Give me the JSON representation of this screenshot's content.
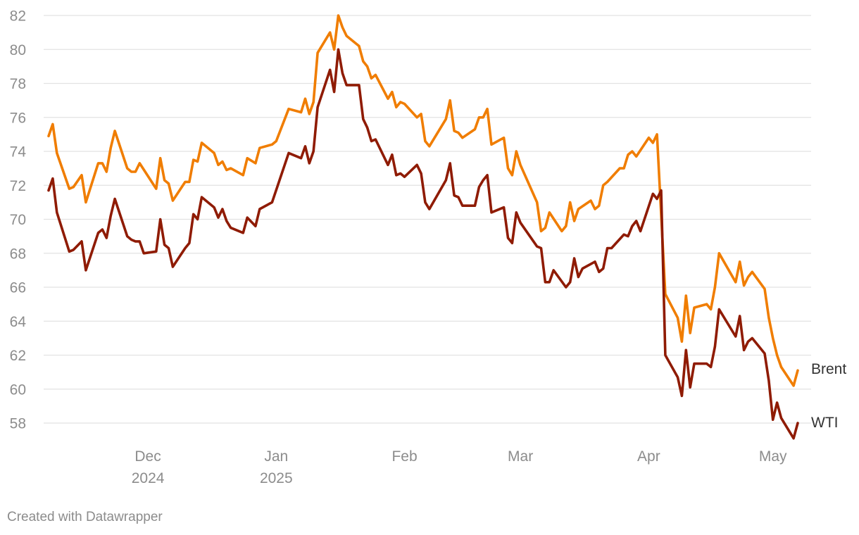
{
  "credit": "Created with Datawrapper",
  "chart_data": {
    "type": "line",
    "title": "",
    "xlabel": "",
    "ylabel": "",
    "ylim": [
      57,
      82
    ],
    "yticks": [
      58,
      60,
      62,
      64,
      66,
      68,
      70,
      72,
      74,
      76,
      78,
      80,
      82
    ],
    "xlim": [
      "2024-11-07",
      "2025-05-07"
    ],
    "xticks": [
      {
        "date": "2024-12-01",
        "label": "Dec",
        "sublabel": "2024"
      },
      {
        "date": "2025-01-01",
        "label": "Jan",
        "sublabel": "2025"
      },
      {
        "date": "2025-02-01",
        "label": "Feb",
        "sublabel": ""
      },
      {
        "date": "2025-03-01",
        "label": "Mar",
        "sublabel": ""
      },
      {
        "date": "2025-04-01",
        "label": "Apr",
        "sublabel": ""
      },
      {
        "date": "2025-05-01",
        "label": "May",
        "sublabel": ""
      }
    ],
    "grid": true,
    "legend": "direct labels at line ends",
    "series": [
      {
        "name": "Brent",
        "color": "#f07d00",
        "points": [
          [
            "2024-11-07",
            74.9
          ],
          [
            "2024-11-08",
            75.6
          ],
          [
            "2024-11-09",
            73.9
          ],
          [
            "2024-11-12",
            71.8
          ],
          [
            "2024-11-13",
            71.9
          ],
          [
            "2024-11-15",
            72.6
          ],
          [
            "2024-11-16",
            71.0
          ],
          [
            "2024-11-19",
            73.3
          ],
          [
            "2024-11-20",
            73.3
          ],
          [
            "2024-11-21",
            72.8
          ],
          [
            "2024-11-22",
            74.2
          ],
          [
            "2024-11-23",
            75.2
          ],
          [
            "2024-11-26",
            73.0
          ],
          [
            "2024-11-27",
            72.8
          ],
          [
            "2024-11-28",
            72.8
          ],
          [
            "2024-11-29",
            73.3
          ],
          [
            "2024-12-03",
            71.8
          ],
          [
            "2024-12-04",
            73.6
          ],
          [
            "2024-12-05",
            72.3
          ],
          [
            "2024-12-06",
            72.1
          ],
          [
            "2024-12-07",
            71.1
          ],
          [
            "2024-12-10",
            72.2
          ],
          [
            "2024-12-11",
            72.2
          ],
          [
            "2024-12-12",
            73.5
          ],
          [
            "2024-12-13",
            73.4
          ],
          [
            "2024-12-14",
            74.5
          ],
          [
            "2024-12-17",
            73.9
          ],
          [
            "2024-12-18",
            73.2
          ],
          [
            "2024-12-19",
            73.4
          ],
          [
            "2024-12-20",
            72.9
          ],
          [
            "2024-12-21",
            73.0
          ],
          [
            "2024-12-24",
            72.6
          ],
          [
            "2024-12-25",
            73.6
          ],
          [
            "2024-12-27",
            73.3
          ],
          [
            "2024-12-28",
            74.2
          ],
          [
            "2024-12-31",
            74.4
          ],
          [
            "2025-01-01",
            74.6
          ],
          [
            "2025-01-04",
            76.5
          ],
          [
            "2025-01-07",
            76.3
          ],
          [
            "2025-01-08",
            77.1
          ],
          [
            "2025-01-09",
            76.2
          ],
          [
            "2025-01-10",
            76.9
          ],
          [
            "2025-01-11",
            79.8
          ],
          [
            "2025-01-14",
            81.0
          ],
          [
            "2025-01-15",
            80.0
          ],
          [
            "2025-01-16",
            82.0
          ],
          [
            "2025-01-17",
            81.3
          ],
          [
            "2025-01-18",
            80.8
          ],
          [
            "2025-01-21",
            80.2
          ],
          [
            "2025-01-22",
            79.3
          ],
          [
            "2025-01-23",
            79.0
          ],
          [
            "2025-01-24",
            78.3
          ],
          [
            "2025-01-25",
            78.5
          ],
          [
            "2025-01-28",
            77.1
          ],
          [
            "2025-01-29",
            77.5
          ],
          [
            "2025-01-30",
            76.6
          ],
          [
            "2025-01-31",
            76.9
          ],
          [
            "2025-02-01",
            76.8
          ],
          [
            "2025-02-04",
            76.0
          ],
          [
            "2025-02-05",
            76.2
          ],
          [
            "2025-02-06",
            74.6
          ],
          [
            "2025-02-07",
            74.3
          ],
          [
            "2025-02-11",
            75.9
          ],
          [
            "2025-02-12",
            77.0
          ],
          [
            "2025-02-13",
            75.2
          ],
          [
            "2025-02-14",
            75.1
          ],
          [
            "2025-02-15",
            74.8
          ],
          [
            "2025-02-18",
            75.3
          ],
          [
            "2025-02-19",
            76.0
          ],
          [
            "2025-02-20",
            76.0
          ],
          [
            "2025-02-21",
            76.5
          ],
          [
            "2025-02-22",
            74.4
          ],
          [
            "2025-02-25",
            74.8
          ],
          [
            "2025-02-26",
            73.0
          ],
          [
            "2025-02-27",
            72.6
          ],
          [
            "2025-02-28",
            74.0
          ],
          [
            "2025-03-01",
            73.2
          ],
          [
            "2025-03-05",
            71.0
          ],
          [
            "2025-03-06",
            69.3
          ],
          [
            "2025-03-07",
            69.5
          ],
          [
            "2025-03-08",
            70.4
          ],
          [
            "2025-03-11",
            69.3
          ],
          [
            "2025-03-12",
            69.6
          ],
          [
            "2025-03-13",
            71.0
          ],
          [
            "2025-03-14",
            69.9
          ],
          [
            "2025-03-15",
            70.6
          ],
          [
            "2025-03-18",
            71.1
          ],
          [
            "2025-03-19",
            70.6
          ],
          [
            "2025-03-20",
            70.8
          ],
          [
            "2025-03-21",
            72.0
          ],
          [
            "2025-03-22",
            72.2
          ],
          [
            "2025-03-25",
            73.0
          ],
          [
            "2025-03-26",
            73.0
          ],
          [
            "2025-03-27",
            73.8
          ],
          [
            "2025-03-28",
            74.0
          ],
          [
            "2025-03-29",
            73.7
          ],
          [
            "2025-04-01",
            74.8
          ],
          [
            "2025-04-02",
            74.5
          ],
          [
            "2025-04-03",
            75.0
          ],
          [
            "2025-04-05",
            65.6
          ],
          [
            "2025-04-08",
            64.2
          ],
          [
            "2025-04-09",
            62.8
          ],
          [
            "2025-04-10",
            65.5
          ],
          [
            "2025-04-11",
            63.3
          ],
          [
            "2025-04-12",
            64.8
          ],
          [
            "2025-04-15",
            65.0
          ],
          [
            "2025-04-16",
            64.7
          ],
          [
            "2025-04-17",
            66.0
          ],
          [
            "2025-04-18",
            68.0
          ],
          [
            "2025-04-22",
            66.3
          ],
          [
            "2025-04-23",
            67.5
          ],
          [
            "2025-04-24",
            66.1
          ],
          [
            "2025-04-25",
            66.6
          ],
          [
            "2025-04-26",
            66.9
          ],
          [
            "2025-04-29",
            65.9
          ],
          [
            "2025-04-30",
            64.2
          ],
          [
            "2025-05-01",
            63.0
          ],
          [
            "2025-05-02",
            62.0
          ],
          [
            "2025-05-03",
            61.3
          ],
          [
            "2025-05-06",
            60.2
          ],
          [
            "2025-05-07",
            61.1
          ]
        ]
      },
      {
        "name": "WTI",
        "color": "#8f1b03",
        "points": [
          [
            "2024-11-07",
            71.7
          ],
          [
            "2024-11-08",
            72.4
          ],
          [
            "2024-11-09",
            70.4
          ],
          [
            "2024-11-12",
            68.1
          ],
          [
            "2024-11-13",
            68.2
          ],
          [
            "2024-11-15",
            68.7
          ],
          [
            "2024-11-16",
            67.0
          ],
          [
            "2024-11-19",
            69.2
          ],
          [
            "2024-11-20",
            69.4
          ],
          [
            "2024-11-21",
            68.9
          ],
          [
            "2024-11-22",
            70.2
          ],
          [
            "2024-11-23",
            71.2
          ],
          [
            "2024-11-26",
            69.0
          ],
          [
            "2024-11-27",
            68.8
          ],
          [
            "2024-11-28",
            68.7
          ],
          [
            "2024-11-29",
            68.7
          ],
          [
            "2024-11-30",
            68.0
          ],
          [
            "2024-12-03",
            68.1
          ],
          [
            "2024-12-04",
            70.0
          ],
          [
            "2024-12-05",
            68.5
          ],
          [
            "2024-12-06",
            68.3
          ],
          [
            "2024-12-07",
            67.2
          ],
          [
            "2024-12-10",
            68.3
          ],
          [
            "2024-12-11",
            68.6
          ],
          [
            "2024-12-12",
            70.3
          ],
          [
            "2024-12-13",
            70.0
          ],
          [
            "2024-12-14",
            71.3
          ],
          [
            "2024-12-17",
            70.7
          ],
          [
            "2024-12-18",
            70.1
          ],
          [
            "2024-12-19",
            70.6
          ],
          [
            "2024-12-20",
            69.9
          ],
          [
            "2024-12-21",
            69.5
          ],
          [
            "2024-12-24",
            69.2
          ],
          [
            "2024-12-25",
            70.1
          ],
          [
            "2024-12-27",
            69.6
          ],
          [
            "2024-12-28",
            70.6
          ],
          [
            "2024-12-31",
            71.0
          ],
          [
            "2025-01-04",
            73.9
          ],
          [
            "2025-01-07",
            73.6
          ],
          [
            "2025-01-08",
            74.3
          ],
          [
            "2025-01-09",
            73.3
          ],
          [
            "2025-01-10",
            74.0
          ],
          [
            "2025-01-11",
            76.6
          ],
          [
            "2025-01-14",
            78.8
          ],
          [
            "2025-01-15",
            77.5
          ],
          [
            "2025-01-16",
            80.0
          ],
          [
            "2025-01-17",
            78.6
          ],
          [
            "2025-01-18",
            77.9
          ],
          [
            "2025-01-21",
            77.9
          ],
          [
            "2025-01-22",
            75.9
          ],
          [
            "2025-01-23",
            75.4
          ],
          [
            "2025-01-24",
            74.6
          ],
          [
            "2025-01-25",
            74.7
          ],
          [
            "2025-01-28",
            73.2
          ],
          [
            "2025-01-29",
            73.8
          ],
          [
            "2025-01-30",
            72.6
          ],
          [
            "2025-01-31",
            72.7
          ],
          [
            "2025-02-01",
            72.5
          ],
          [
            "2025-02-04",
            73.2
          ],
          [
            "2025-02-05",
            72.7
          ],
          [
            "2025-02-06",
            71.0
          ],
          [
            "2025-02-07",
            70.6
          ],
          [
            "2025-02-11",
            72.3
          ],
          [
            "2025-02-12",
            73.3
          ],
          [
            "2025-02-13",
            71.4
          ],
          [
            "2025-02-14",
            71.3
          ],
          [
            "2025-02-15",
            70.8
          ],
          [
            "2025-02-18",
            70.8
          ],
          [
            "2025-02-19",
            71.9
          ],
          [
            "2025-02-20",
            72.3
          ],
          [
            "2025-02-21",
            72.6
          ],
          [
            "2025-02-22",
            70.4
          ],
          [
            "2025-02-25",
            70.7
          ],
          [
            "2025-02-26",
            68.9
          ],
          [
            "2025-02-27",
            68.6
          ],
          [
            "2025-02-28",
            70.4
          ],
          [
            "2025-03-01",
            69.8
          ],
          [
            "2025-03-05",
            68.4
          ],
          [
            "2025-03-06",
            68.3
          ],
          [
            "2025-03-07",
            66.3
          ],
          [
            "2025-03-08",
            66.3
          ],
          [
            "2025-03-09",
            67.0
          ],
          [
            "2025-03-12",
            66.0
          ],
          [
            "2025-03-13",
            66.3
          ],
          [
            "2025-03-14",
            67.7
          ],
          [
            "2025-03-15",
            66.6
          ],
          [
            "2025-03-16",
            67.1
          ],
          [
            "2025-03-19",
            67.5
          ],
          [
            "2025-03-20",
            66.9
          ],
          [
            "2025-03-21",
            67.1
          ],
          [
            "2025-03-22",
            68.3
          ],
          [
            "2025-03-23",
            68.3
          ],
          [
            "2025-03-26",
            69.1
          ],
          [
            "2025-03-27",
            69.0
          ],
          [
            "2025-03-28",
            69.6
          ],
          [
            "2025-03-29",
            69.9
          ],
          [
            "2025-03-30",
            69.3
          ],
          [
            "2025-04-02",
            71.5
          ],
          [
            "2025-04-03",
            71.2
          ],
          [
            "2025-04-04",
            71.7
          ],
          [
            "2025-04-05",
            62.0
          ],
          [
            "2025-04-08",
            60.7
          ],
          [
            "2025-04-09",
            59.6
          ],
          [
            "2025-04-10",
            62.3
          ],
          [
            "2025-04-11",
            60.1
          ],
          [
            "2025-04-12",
            61.5
          ],
          [
            "2025-04-15",
            61.5
          ],
          [
            "2025-04-16",
            61.3
          ],
          [
            "2025-04-17",
            62.5
          ],
          [
            "2025-04-18",
            64.7
          ],
          [
            "2025-04-22",
            63.1
          ],
          [
            "2025-04-23",
            64.3
          ],
          [
            "2025-04-24",
            62.3
          ],
          [
            "2025-04-25",
            62.8
          ],
          [
            "2025-04-26",
            63.0
          ],
          [
            "2025-04-29",
            62.1
          ],
          [
            "2025-04-30",
            60.5
          ],
          [
            "2025-05-01",
            58.2
          ],
          [
            "2025-05-02",
            59.2
          ],
          [
            "2025-05-03",
            58.3
          ],
          [
            "2025-05-06",
            57.1
          ],
          [
            "2025-05-07",
            58.0
          ]
        ]
      }
    ]
  }
}
